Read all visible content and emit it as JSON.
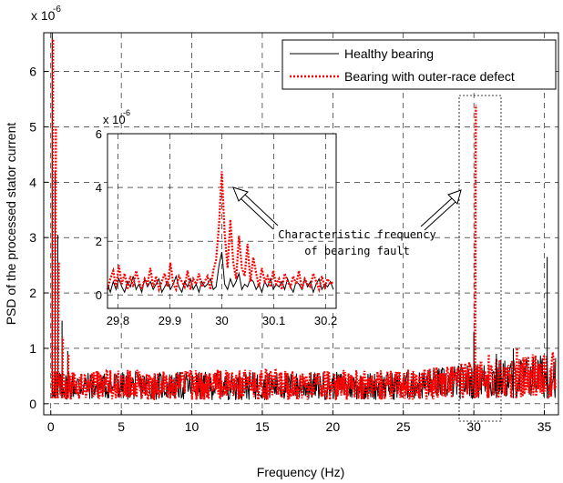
{
  "chart_data": [
    {
      "id": "main",
      "type": "line",
      "xlabel": "Frequency (Hz)",
      "ylabel": "PSD of the processed stator current",
      "xlim": [
        -0.5,
        36
      ],
      "ylim": [
        -0.2,
        6.7
      ],
      "y_exponent_label": "x 10",
      "y_exponent_power": "-6",
      "x_ticks": [
        "0",
        "5",
        "10",
        "15",
        "20",
        "25",
        "30",
        "35"
      ],
      "y_ticks": [
        "0",
        "1",
        "2",
        "3",
        "4",
        "5",
        "6"
      ],
      "grid": true,
      "grid_style": "dashed",
      "legend_position": "top-right",
      "series": [
        {
          "name": "Healthy bearing",
          "color": "#000000",
          "style": "solid",
          "features": [
            {
              "x": 0.1,
              "y": 6.7
            },
            {
              "x": 0.3,
              "y": 4.2
            },
            {
              "x": 0.5,
              "y": 3.05
            },
            {
              "x": 0.8,
              "y": 1.5
            },
            {
              "x": 1.2,
              "y": 0.95
            },
            {
              "x": 30.0,
              "y": 1.3
            },
            {
              "x": 31.6,
              "y": 0.9
            },
            {
              "x": 32.8,
              "y": 1.0
            },
            {
              "x": 35.2,
              "y": 2.65
            }
          ]
        },
        {
          "name": "Bearing with outer-race defect",
          "color": "#ff0000",
          "style": "dotted",
          "features": [
            {
              "x": 0.1,
              "y": 6.6
            },
            {
              "x": 0.3,
              "y": 5.0
            },
            {
              "x": 0.5,
              "y": 2.55
            },
            {
              "x": 0.8,
              "y": 1.2
            },
            {
              "x": 1.2,
              "y": 0.9
            },
            {
              "x": 30.08,
              "y": 5.4
            },
            {
              "x": 31.0,
              "y": 0.9
            },
            {
              "x": 33.0,
              "y": 1.0
            }
          ]
        }
      ]
    },
    {
      "id": "inset",
      "type": "line",
      "xlim": [
        29.78,
        30.22
      ],
      "ylim": [
        -0.5,
        6
      ],
      "y_exponent_label": "x 10",
      "y_exponent_power": "-6",
      "x_ticks": [
        "29.8",
        "29.9",
        "30",
        "30.1",
        "30.2"
      ],
      "y_ticks": [
        "0",
        "2",
        "4",
        "6"
      ],
      "grid": true,
      "series": [
        {
          "name": "Healthy bearing",
          "color": "#000000",
          "x_start": 29.78,
          "x_step": 0.0055,
          "values": [
            0.4,
            0.1,
            0.5,
            0.2,
            0.6,
            0.3,
            0.1,
            0.5,
            0.3,
            0.7,
            0.2,
            0.4,
            0.1,
            0.6,
            0.3,
            0.5,
            0.2,
            0.4,
            0.6,
            0.1,
            0.3,
            0.5,
            0.2,
            0.4,
            0.7,
            0.3,
            0.1,
            0.5,
            0.3,
            0.6,
            0.2,
            0.4,
            0.1,
            0.5,
            0.3,
            0.4,
            0.6,
            0.2,
            0.3,
            1.1,
            1.6,
            0.4,
            0.2,
            0.6,
            0.3,
            0.5,
            0.8,
            0.2,
            0.4,
            0.3,
            0.6,
            0.5,
            0.2,
            0.4,
            0.1,
            0.5,
            0.3,
            0.6,
            0.2,
            0.4,
            0.3,
            0.5,
            0.2,
            0.6,
            0.3,
            0.1,
            0.5,
            0.4,
            0.2,
            0.6,
            0.3,
            0.5,
            0.1,
            0.4,
            0.6,
            0.2,
            0.4,
            0.3,
            0.5,
            0.2,
            0.8
          ]
        },
        {
          "name": "Bearing with outer-race defect",
          "color": "#ff0000",
          "x_start": 29.78,
          "x_step": 0.0055,
          "values": [
            0.2,
            0.6,
            0.9,
            0.3,
            1.1,
            0.4,
            0.8,
            0.2,
            0.7,
            0.3,
            0.9,
            0.5,
            0.2,
            0.6,
            0.4,
            1.0,
            0.3,
            0.7,
            0.2,
            0.5,
            0.8,
            0.3,
            1.2,
            0.4,
            0.2,
            0.7,
            0.5,
            0.3,
            0.9,
            0.2,
            0.6,
            0.4,
            0.8,
            0.3,
            0.5,
            0.7,
            0.2,
            0.9,
            1.3,
            2.6,
            4.6,
            2.3,
            1.0,
            2.8,
            1.2,
            0.6,
            2.2,
            1.0,
            0.7,
            1.9,
            0.5,
            1.4,
            0.8,
            0.3,
            1.0,
            0.5,
            0.7,
            0.3,
            0.9,
            0.4,
            0.6,
            0.2,
            0.8,
            0.5,
            0.3,
            0.7,
            0.4,
            0.9,
            0.2,
            0.6,
            0.4,
            0.3,
            0.8,
            0.5,
            0.2,
            0.7,
            0.3,
            0.6,
            0.4,
            0.5,
            0.3
          ]
        }
      ]
    }
  ],
  "annotation": {
    "line1": "Characteristic frequency",
    "line2": "of bearing fault"
  },
  "colors": {
    "healthy": "#000000",
    "defect": "#ff0000",
    "grid": "#000000",
    "background": "#ffffff"
  }
}
